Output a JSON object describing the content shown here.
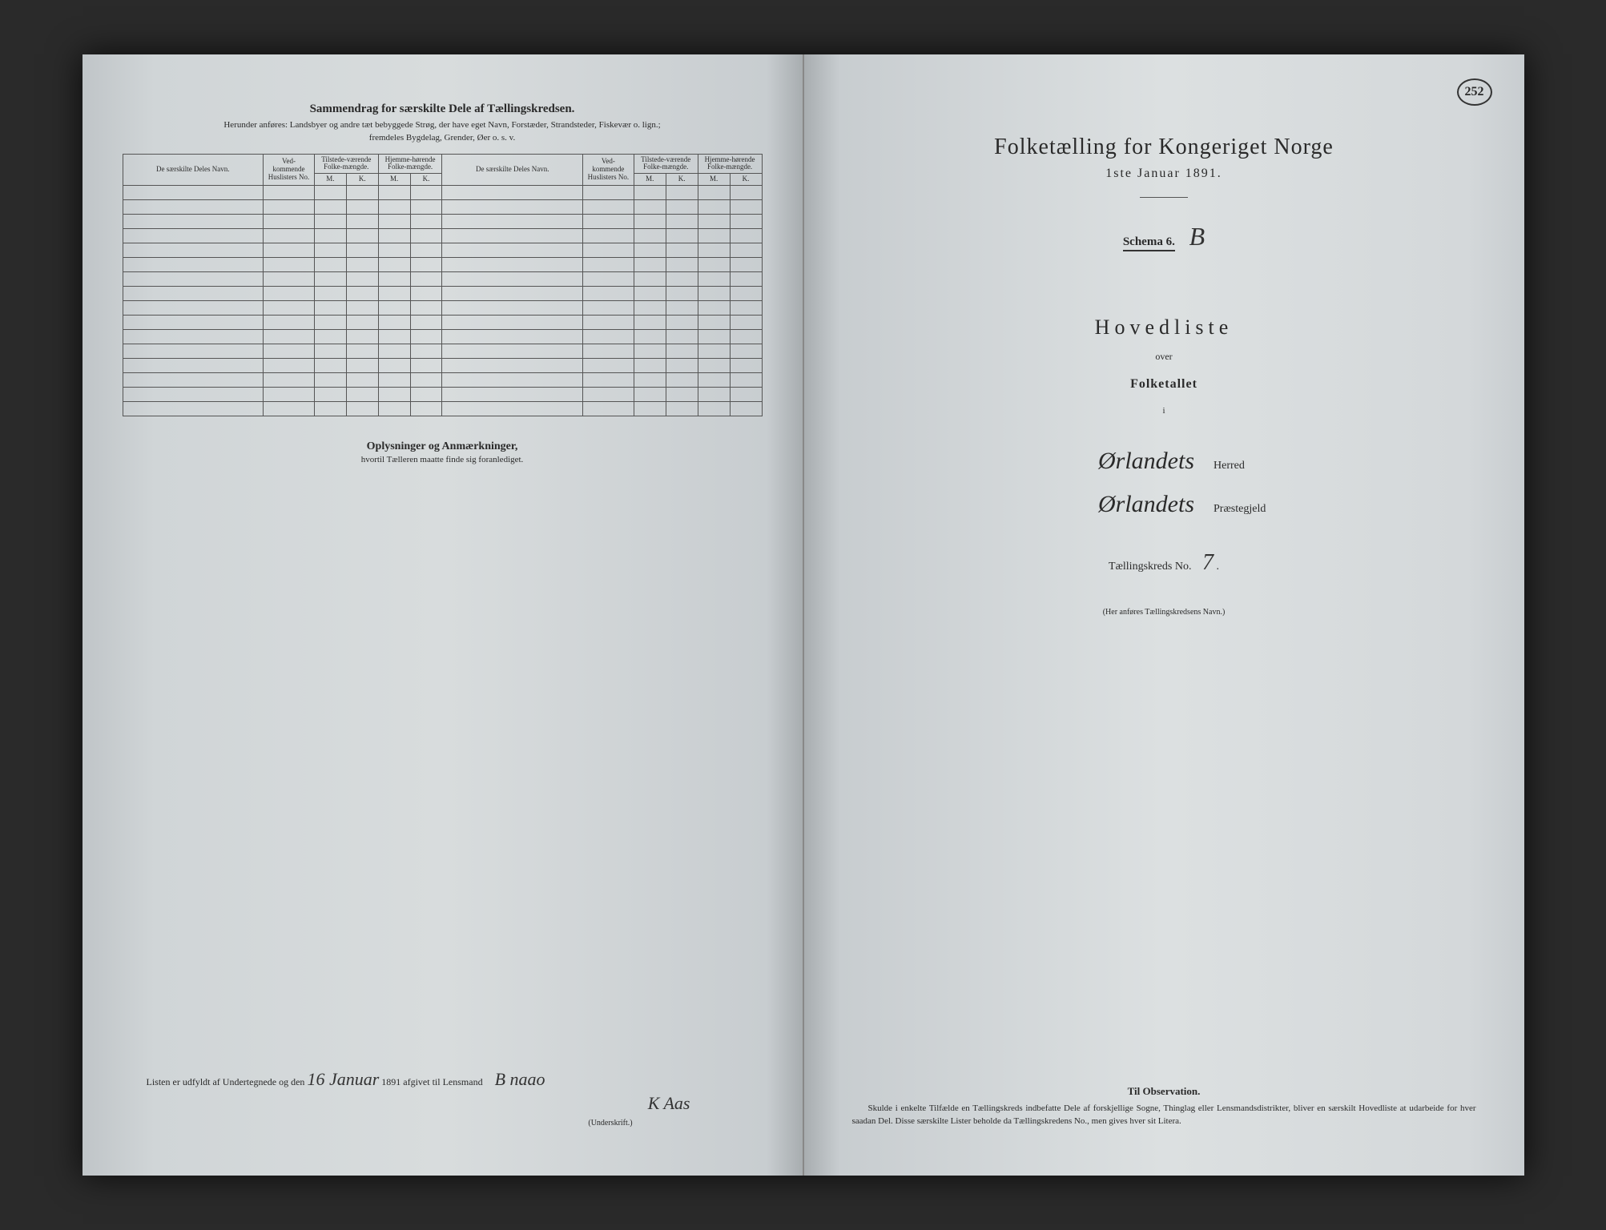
{
  "pageNumber": "252",
  "leftPage": {
    "summaryTitle": "Sammendrag for særskilte Dele af Tællingskredsen.",
    "summarySubtitle1": "Herunder anføres: Landsbyer og andre tæt bebyggede Strøg, der have eget Navn, Forstæder, Strandsteder, Fiskevær o. lign.;",
    "summarySubtitle2": "fremdeles Bygdelag, Grender, Øer o. s. v.",
    "tableHeaders": {
      "name": "De særskilte Deles Navn.",
      "huslisters": "Ved-kommende Huslisters No.",
      "tilstede": "Tilstede-værende Folke-mængde.",
      "hjemme": "Hjemme-hørende Folke-mængde.",
      "m": "M.",
      "k": "K."
    },
    "rowCount": 16,
    "notesTitle": "Oplysninger og Anmærkninger,",
    "notesSubtitle": "hvortil Tælleren maatte finde sig foranlediget.",
    "signaturePrefix": "Listen er udfyldt af Undertegnede og den",
    "signatureDate": "16 Januar",
    "signatureYear": "1891 afgivet til Lensmand",
    "signature1": "B naao",
    "signature2": "K Aas",
    "underskrift": "(Underskrift.)"
  },
  "rightPage": {
    "title": "Folketælling for Kongeriget Norge",
    "date": "1ste Januar 1891.",
    "schemaLabel": "Schema 6.",
    "schemaLetter": "B",
    "hovedliste": "Hovedliste",
    "over": "over",
    "folketallet": "Folketallet",
    "i": "i",
    "herredValue": "Ørlandets",
    "herredLabel": "Herred",
    "praestegjeldValue": "Ørlandets",
    "praestegjeldLabel": "Præstegjeld",
    "kredsLabel": "Tællingskreds No.",
    "kredsValue": "7",
    "kredsNote": "(Her anføres Tællingskredsens Navn.)",
    "obsTitle": "Til Observation.",
    "obsBody": "Skulde i enkelte Tilfælde en Tællingskreds indbefatte Dele af forskjellige Sogne, Thinglag eller Lensmandsdistrikter, bliver en særskilt Hovedliste at udarbeide for hver saadan Del. Disse særskilte Lister beholde da Tællingskredens No., men gives hver sit Litera."
  },
  "colors": {
    "pageBackground": "#d8dcdd",
    "text": "#2a2a2a",
    "border": "#555555",
    "bookBackground": "#1a1a1a"
  }
}
